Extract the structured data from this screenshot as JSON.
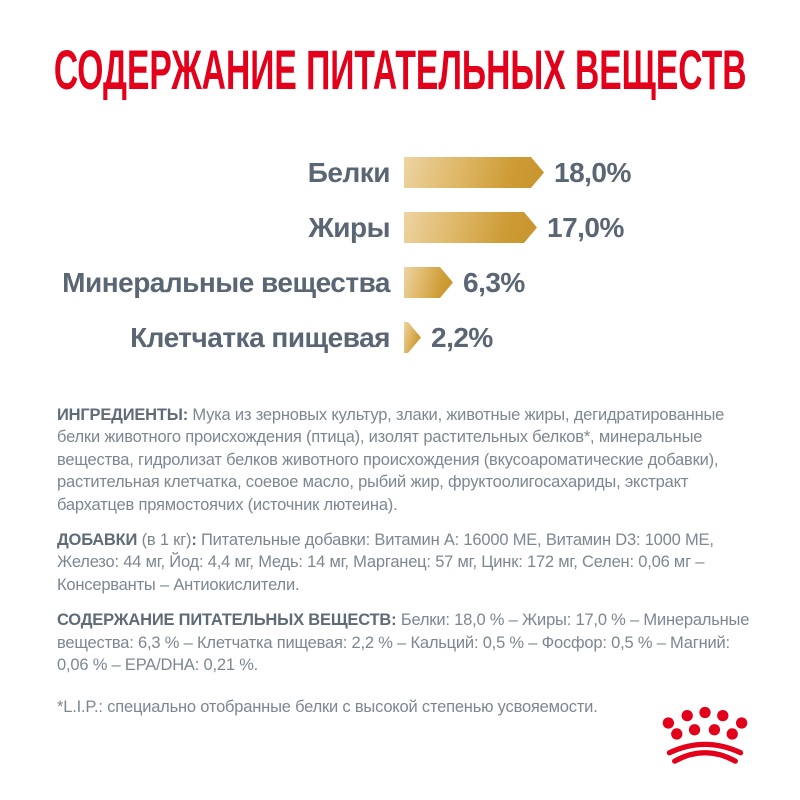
{
  "title": "СОДЕРЖАНИЕ ПИТАТЕЛЬНЫХ ВЕЩЕСТВ",
  "colors": {
    "brand_red": "#E2001A",
    "bar_gold_light": "#EDD4A2",
    "bar_gold_dark": "#C8932C",
    "chart_text": "#5A6673",
    "body_text": "#7C8792",
    "heading_text": "#5F6B76",
    "background": "#FFFFFF"
  },
  "chart_data": {
    "type": "bar",
    "orientation": "horizontal",
    "title": "",
    "xlabel": "",
    "ylabel": "",
    "grid": false,
    "legend": false,
    "unit": "%",
    "categories": [
      "Белки",
      "Жиры",
      "Минеральные вещества",
      "Клетчатка пищевая"
    ],
    "values": [
      18.0,
      17.0,
      6.3,
      2.2
    ],
    "value_labels": [
      "18,0%",
      "17,0%",
      "6,3%",
      "2,2%"
    ],
    "xlim": [
      0,
      18
    ],
    "bar_style": "gold-gradient-arrow"
  },
  "sections": [
    {
      "name": "ingredients",
      "parts": [
        {
          "text": "ИНГРЕДИЕНТЫ:",
          "bold": true
        },
        {
          "text": " Мука из зерновых культур, злаки, животные жиры, дегидратированные белки животного происхождения (птица), изолят растительных белков*, минеральные вещества, гидролизат белков животного происхождения (вкусоароматические добавки), растительная клетчатка, соевое масло, рыбий жир, фруктоолигосахариды, экстракт бархатцев прямостоячих (источник лютеина).",
          "bold": false
        }
      ]
    },
    {
      "name": "additives",
      "parts": [
        {
          "text": "ДОБАВКИ",
          "bold": true
        },
        {
          "text": " (в 1 кг)",
          "bold": false
        },
        {
          "text": ":",
          "bold": true
        },
        {
          "text": " Питательные добавки: Витамин A: 16000 МЕ, Витамин D3: 1000 МЕ, Железо: 44 мг, Йод: 4,4 мг, Медь: 14 мг, Марганец: 57 мг, Цинк: 172 мг, Селен: 0,06 мг – Консерванты – Антиокислители.",
          "bold": false
        }
      ]
    },
    {
      "name": "nutrient-content",
      "parts": [
        {
          "text": "СОДЕРЖАНИЕ ПИТАТЕЛЬНЫХ ВЕЩЕСТВ:",
          "bold": true
        },
        {
          "text": " Белки: 18,0 % – Жиры: 17,0 % – Минеральные вещества: 6,3 % – Клетчатка пищевая: 2,2 % – Кальций: 0,5 % – Фосфор: 0,5 % – Магний: 0,06 % – EPA/DHA: 0,21 %.",
          "bold": false
        }
      ]
    }
  ],
  "footnote": "*L.I.P.: специально отобранные белки с высокой степенью усвояемости.",
  "logo": {
    "icon": "royal-canin-crown",
    "color": "#E2001A"
  }
}
